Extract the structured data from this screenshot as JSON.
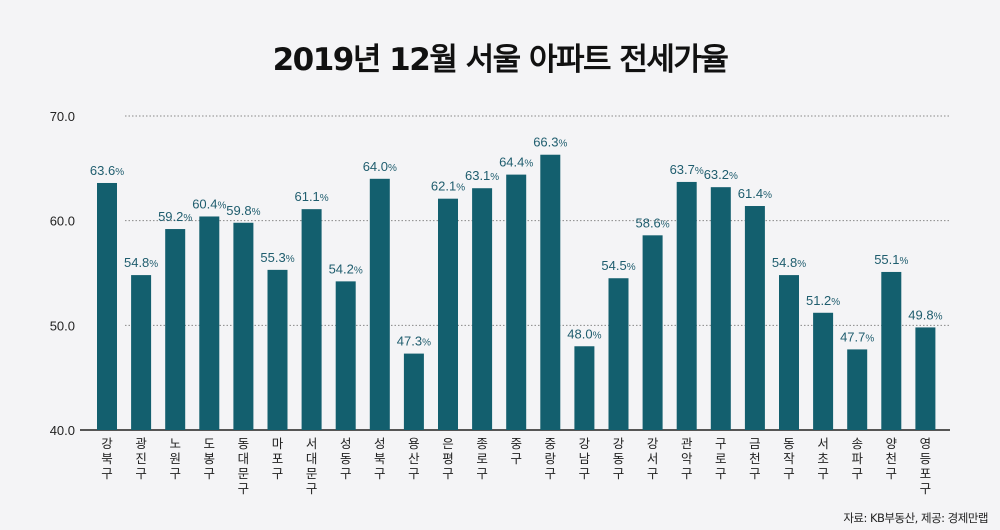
{
  "chart_data": {
    "type": "bar",
    "title": "2019년 12월 서울 아파트 전세가율",
    "categories": [
      "강북구",
      "광진구",
      "노원구",
      "도봉구",
      "동대문구",
      "마포구",
      "서대문구",
      "성동구",
      "성북구",
      "용산구",
      "은평구",
      "종로구",
      "중구",
      "중랑구",
      "강남구",
      "강동구",
      "강서구",
      "관악구",
      "구로구",
      "금천구",
      "동작구",
      "서초구",
      "송파구",
      "양천구",
      "영등포구"
    ],
    "values": [
      63.6,
      54.8,
      59.2,
      60.4,
      59.8,
      55.3,
      61.1,
      54.2,
      64.0,
      47.3,
      62.1,
      63.1,
      64.4,
      66.3,
      48.0,
      54.5,
      58.6,
      63.7,
      63.2,
      61.4,
      54.8,
      51.2,
      47.7,
      55.1,
      49.8
    ],
    "value_suffix": "%",
    "ylim": [
      40,
      70
    ],
    "yticks": [
      "40.0",
      "50.0",
      "60.0",
      "70.0"
    ],
    "grid": true,
    "xlabel": "",
    "ylabel": "",
    "bar_color": "#135f6e",
    "label_color": "#1f5d6e"
  },
  "source": "자료: KB부동산, 제공: 경제만랩"
}
